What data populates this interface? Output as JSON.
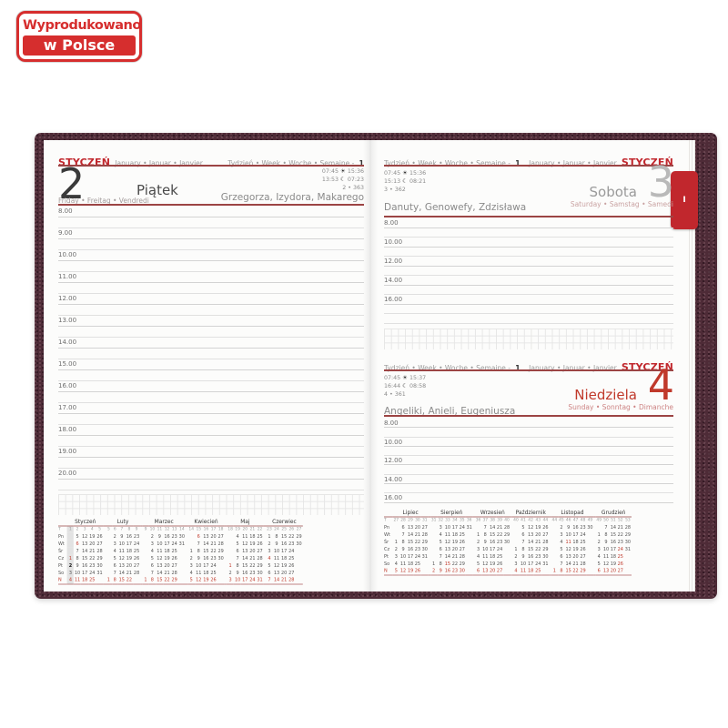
{
  "badge": {
    "line1": "Wyprodukowano",
    "line2": "w Polsce"
  },
  "book": {
    "tab_label": "I"
  },
  "icons": {
    "sun": "☀",
    "moon": "☾"
  },
  "colors": {
    "accent_red": "#c1272d",
    "rule_red": "#9c4444",
    "sunday_red": "#c0392b",
    "cover_maroon": "#4e2b37",
    "week_highlight": "#e2e2e2"
  },
  "left_page": {
    "month_title": "STYCZEŃ",
    "month_subtitle": "January • Januar • Janvier",
    "week_label": "Tydzień • Week • Woche • Semaine -",
    "week_number": "1",
    "day_number": "2",
    "day_name": "Piątek",
    "day_subtitle": "Friday • Freitag • Vendredi",
    "sunrise": "07:45",
    "sunset": "15:36",
    "moonrise": "13:53",
    "moonset": "07:23",
    "day_counter": "2 • 363",
    "name_days": "Grzegorza, Izydora, Makarego",
    "hours": [
      "8.00",
      "9.00",
      "10.00",
      "11.00",
      "12.00",
      "13.00",
      "14.00",
      "15.00",
      "16.00",
      "17.00",
      "18.00",
      "19.00",
      "20.00"
    ]
  },
  "right_page": {
    "saturday": {
      "week_label": "Tydzień • Week • Woche • Semaine -",
      "week_number": "1",
      "month_subtitle": "January • Januar • Janvier",
      "month_title": "STYCZEŃ",
      "sunrise": "07:45",
      "sunset": "15:36",
      "moonrise": "15:13",
      "moonset": "08:21",
      "day_counter": "3 • 362",
      "name_days": "Danuty, Genowefy, Zdzisława",
      "day_number": "3",
      "day_name": "Sobota",
      "day_subtitle": "Saturday • Samstag • Samedi",
      "hours": [
        "8.00",
        "10.00",
        "12.00",
        "14.00",
        "16.00"
      ]
    },
    "sunday": {
      "week_label": "Tydzień • Week • Woche • Semaine -",
      "week_number": "1",
      "month_subtitle": "January • Januar • Janvier",
      "month_title": "STYCZEŃ",
      "sunrise": "07:45",
      "sunset": "15:37",
      "moonrise": "16:44",
      "moonset": "08:58",
      "day_counter": "4 • 361",
      "name_days": "Angeliki, Anieli, Eugeniusza",
      "day_number": "4",
      "day_name": "Niedziela",
      "day_subtitle": "Sunday • Sonntag • Dimanche",
      "hours": [
        "8.00",
        "10.00",
        "12.00",
        "14.00",
        "16.00"
      ]
    }
  },
  "mini_calendars": {
    "week_col_label": "T",
    "weekday_labels": [
      "Pn",
      "Wt",
      "Śr",
      "Cz",
      "Pt",
      "So",
      "N"
    ],
    "left_months": [
      {
        "name": "Styczeń",
        "weeks": [
          "1",
          "2",
          "3",
          "4",
          "5"
        ],
        "red_days": [
          1,
          6
        ],
        "today": 2,
        "highlight_week": 0,
        "rows": [
          [
            "",
            "5",
            "12",
            "19",
            "26"
          ],
          [
            "",
            "6",
            "13",
            "20",
            "27"
          ],
          [
            "",
            "7",
            "14",
            "21",
            "28"
          ],
          [
            "1",
            "8",
            "15",
            "22",
            "29"
          ],
          [
            "2",
            "9",
            "16",
            "23",
            "30"
          ],
          [
            "3",
            "10",
            "17",
            "24",
            "31"
          ],
          [
            "4",
            "11",
            "18",
            "25",
            ""
          ]
        ]
      },
      {
        "name": "Luty",
        "weeks": [
          "5",
          "6",
          "7",
          "8",
          "9"
        ],
        "red_days": [],
        "rows": [
          [
            "",
            "2",
            "9",
            "16",
            "23"
          ],
          [
            "",
            "3",
            "10",
            "17",
            "24"
          ],
          [
            "",
            "4",
            "11",
            "18",
            "25"
          ],
          [
            "",
            "5",
            "12",
            "19",
            "26"
          ],
          [
            "",
            "6",
            "13",
            "20",
            "27"
          ],
          [
            "",
            "7",
            "14",
            "21",
            "28"
          ],
          [
            "1",
            "8",
            "15",
            "22",
            ""
          ]
        ]
      },
      {
        "name": "Marzec",
        "weeks": [
          "9",
          "10",
          "11",
          "12",
          "13",
          "14"
        ],
        "red_days": [],
        "rows": [
          [
            "",
            "2",
            "9",
            "16",
            "23",
            "30"
          ],
          [
            "",
            "3",
            "10",
            "17",
            "24",
            "31"
          ],
          [
            "",
            "4",
            "11",
            "18",
            "25",
            ""
          ],
          [
            "",
            "5",
            "12",
            "19",
            "26",
            ""
          ],
          [
            "",
            "6",
            "13",
            "20",
            "27",
            ""
          ],
          [
            "",
            "7",
            "14",
            "21",
            "28",
            ""
          ],
          [
            "1",
            "8",
            "15",
            "22",
            "29",
            ""
          ]
        ]
      },
      {
        "name": "Kwiecień",
        "weeks": [
          "14",
          "15",
          "16",
          "17",
          "18"
        ],
        "red_days": [
          6
        ],
        "rows": [
          [
            "",
            "6",
            "13",
            "20",
            "27"
          ],
          [
            "",
            "7",
            "14",
            "21",
            "28"
          ],
          [
            "1",
            "8",
            "15",
            "22",
            "29"
          ],
          [
            "2",
            "9",
            "16",
            "23",
            "30"
          ],
          [
            "3",
            "10",
            "17",
            "24",
            ""
          ],
          [
            "4",
            "11",
            "18",
            "25",
            ""
          ],
          [
            "5",
            "12",
            "19",
            "26",
            ""
          ]
        ]
      },
      {
        "name": "Maj",
        "weeks": [
          "18",
          "19",
          "20",
          "21",
          "22"
        ],
        "red_days": [
          1
        ],
        "rows": [
          [
            "",
            "4",
            "11",
            "18",
            "25"
          ],
          [
            "",
            "5",
            "12",
            "19",
            "26"
          ],
          [
            "",
            "6",
            "13",
            "20",
            "27"
          ],
          [
            "",
            "7",
            "14",
            "21",
            "28"
          ],
          [
            "1",
            "8",
            "15",
            "22",
            "29"
          ],
          [
            "2",
            "9",
            "16",
            "23",
            "30"
          ],
          [
            "3",
            "10",
            "17",
            "24",
            "31"
          ]
        ]
      },
      {
        "name": "Czerwiec",
        "weeks": [
          "23",
          "24",
          "25",
          "26",
          "27"
        ],
        "red_days": [
          4
        ],
        "rows": [
          [
            "1",
            "8",
            "15",
            "22",
            "29"
          ],
          [
            "2",
            "9",
            "16",
            "23",
            "30"
          ],
          [
            "3",
            "10",
            "17",
            "24",
            ""
          ],
          [
            "4",
            "11",
            "18",
            "25",
            ""
          ],
          [
            "5",
            "12",
            "19",
            "26",
            ""
          ],
          [
            "6",
            "13",
            "20",
            "27",
            ""
          ],
          [
            "7",
            "14",
            "21",
            "28",
            ""
          ]
        ]
      }
    ],
    "right_months": [
      {
        "name": "Lipiec",
        "weeks": [
          "27",
          "28",
          "29",
          "30",
          "31"
        ],
        "red_days": [],
        "rows": [
          [
            "",
            "6",
            "13",
            "20",
            "27"
          ],
          [
            "",
            "7",
            "14",
            "21",
            "28"
          ],
          [
            "1",
            "8",
            "15",
            "22",
            "29"
          ],
          [
            "2",
            "9",
            "16",
            "23",
            "30"
          ],
          [
            "3",
            "10",
            "17",
            "24",
            "31"
          ],
          [
            "4",
            "11",
            "18",
            "25",
            ""
          ],
          [
            "5",
            "12",
            "19",
            "26",
            ""
          ]
        ]
      },
      {
        "name": "Sierpień",
        "weeks": [
          "31",
          "32",
          "33",
          "34",
          "35",
          "36"
        ],
        "red_days": [
          15
        ],
        "rows": [
          [
            "",
            "3",
            "10",
            "17",
            "24",
            "31"
          ],
          [
            "",
            "4",
            "11",
            "18",
            "25",
            ""
          ],
          [
            "",
            "5",
            "12",
            "19",
            "26",
            ""
          ],
          [
            "",
            "6",
            "13",
            "20",
            "27",
            ""
          ],
          [
            "",
            "7",
            "14",
            "21",
            "28",
            ""
          ],
          [
            "1",
            "8",
            "15",
            "22",
            "29",
            ""
          ],
          [
            "2",
            "9",
            "16",
            "23",
            "30",
            ""
          ]
        ]
      },
      {
        "name": "Wrzesień",
        "weeks": [
          "36",
          "37",
          "38",
          "39",
          "40"
        ],
        "red_days": [],
        "rows": [
          [
            "",
            "7",
            "14",
            "21",
            "28"
          ],
          [
            "1",
            "8",
            "15",
            "22",
            "29"
          ],
          [
            "2",
            "9",
            "16",
            "23",
            "30"
          ],
          [
            "3",
            "10",
            "17",
            "24",
            ""
          ],
          [
            "4",
            "11",
            "18",
            "25",
            ""
          ],
          [
            "5",
            "12",
            "19",
            "26",
            ""
          ],
          [
            "6",
            "13",
            "20",
            "27",
            ""
          ]
        ]
      },
      {
        "name": "Październik",
        "weeks": [
          "40",
          "41",
          "42",
          "43",
          "44"
        ],
        "red_days": [],
        "rows": [
          [
            "",
            "5",
            "12",
            "19",
            "26"
          ],
          [
            "",
            "6",
            "13",
            "20",
            "27"
          ],
          [
            "",
            "7",
            "14",
            "21",
            "28"
          ],
          [
            "1",
            "8",
            "15",
            "22",
            "29"
          ],
          [
            "2",
            "9",
            "16",
            "23",
            "30"
          ],
          [
            "3",
            "10",
            "17",
            "24",
            "31"
          ],
          [
            "4",
            "11",
            "18",
            "25",
            ""
          ]
        ]
      },
      {
        "name": "Listopad",
        "weeks": [
          "44",
          "45",
          "46",
          "47",
          "48",
          "49"
        ],
        "red_days": [
          11
        ],
        "rows": [
          [
            "",
            "2",
            "9",
            "16",
            "23",
            "30"
          ],
          [
            "",
            "3",
            "10",
            "17",
            "24",
            ""
          ],
          [
            "",
            "4",
            "11",
            "18",
            "25",
            ""
          ],
          [
            "",
            "5",
            "12",
            "19",
            "26",
            ""
          ],
          [
            "",
            "6",
            "13",
            "20",
            "27",
            ""
          ],
          [
            "",
            "7",
            "14",
            "21",
            "28",
            ""
          ],
          [
            "1",
            "8",
            "15",
            "22",
            "29",
            ""
          ]
        ]
      },
      {
        "name": "Grudzień",
        "weeks": [
          "49",
          "50",
          "51",
          "52",
          "53"
        ],
        "red_days": [
          24,
          25,
          26
        ],
        "rows": [
          [
            "",
            "7",
            "14",
            "21",
            "28"
          ],
          [
            "1",
            "8",
            "15",
            "22",
            "29"
          ],
          [
            "2",
            "9",
            "16",
            "23",
            "30"
          ],
          [
            "3",
            "10",
            "17",
            "24",
            "31"
          ],
          [
            "4",
            "11",
            "18",
            "25",
            ""
          ],
          [
            "5",
            "12",
            "19",
            "26",
            ""
          ],
          [
            "6",
            "13",
            "20",
            "27",
            ""
          ]
        ]
      }
    ]
  }
}
